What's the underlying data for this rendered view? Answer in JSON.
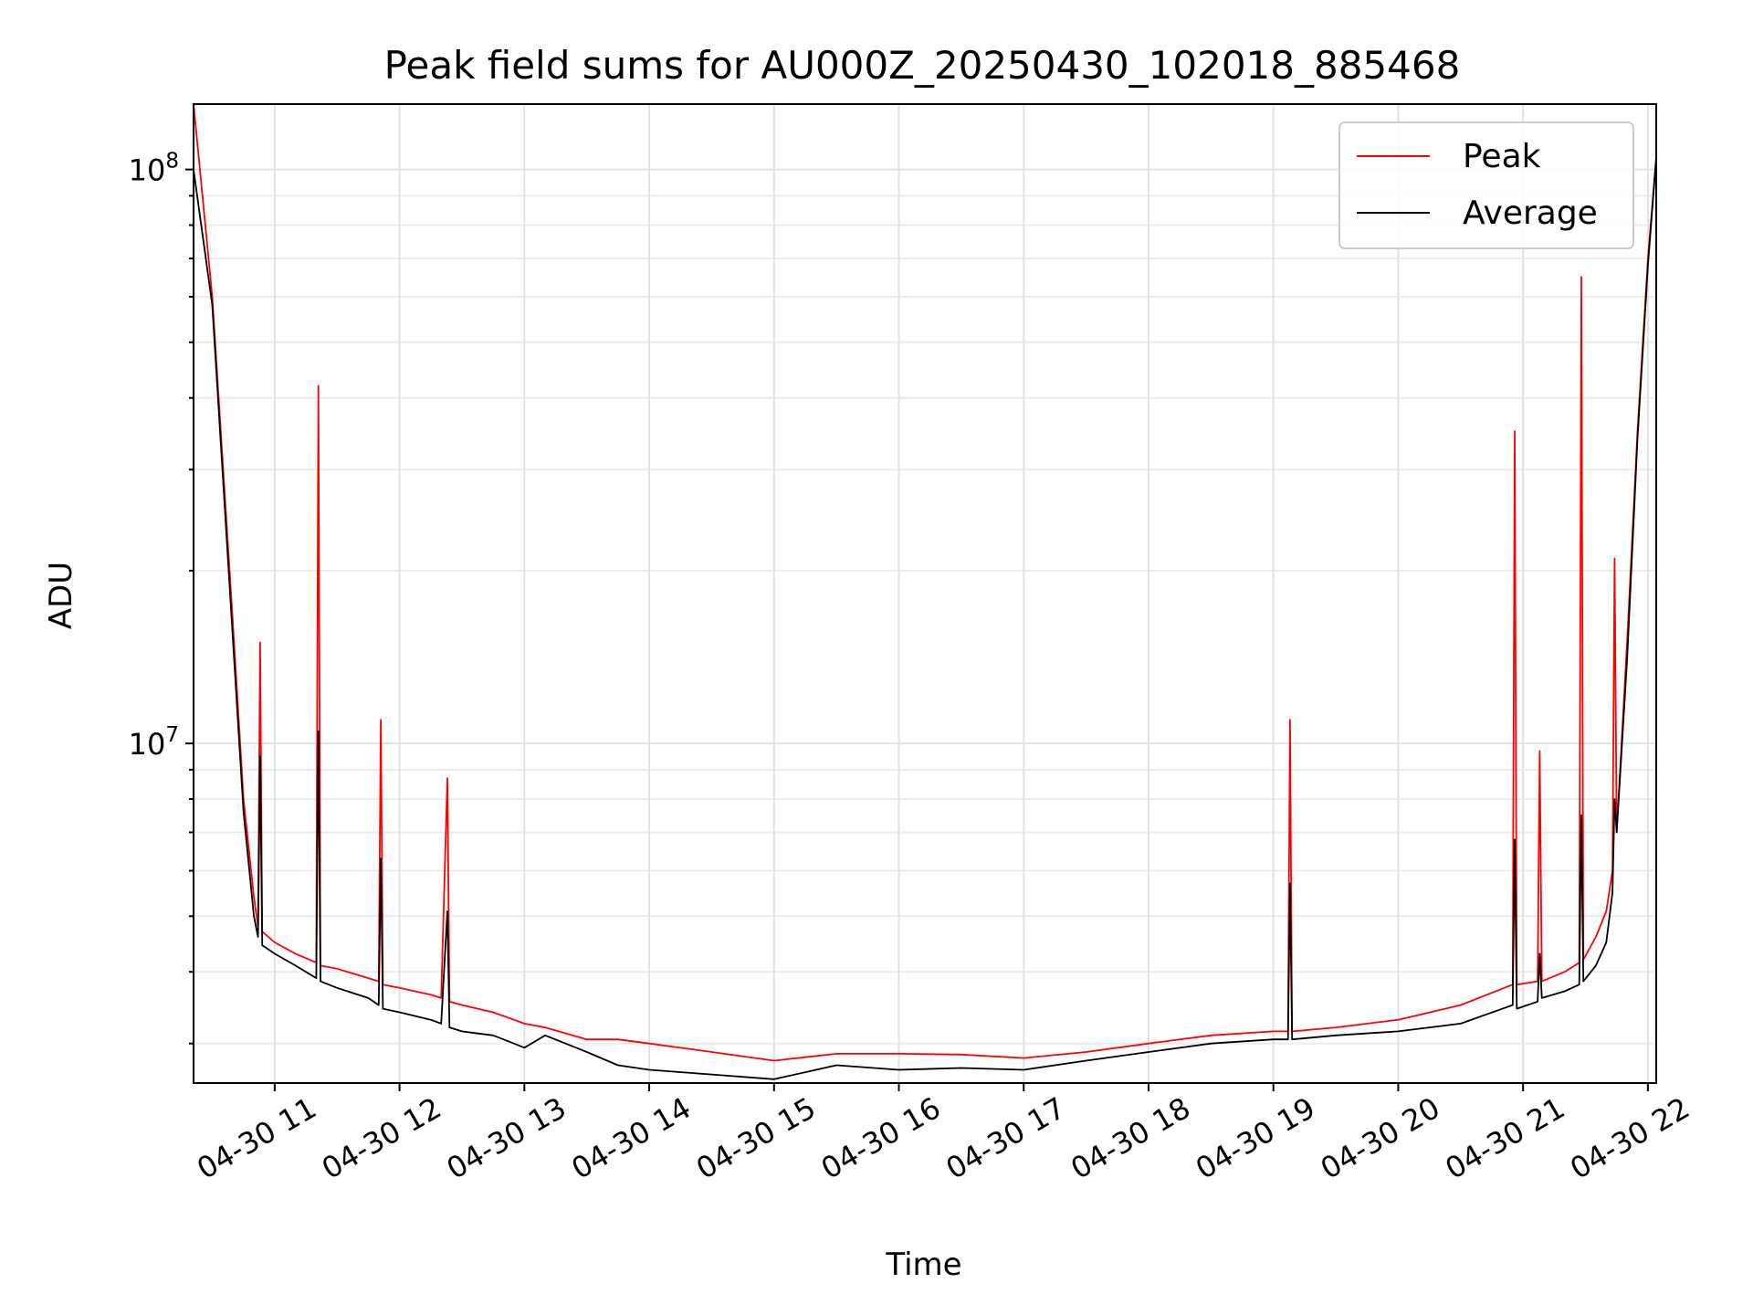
{
  "chart_data": {
    "type": "line",
    "title": "Peak field sums for AU000Z_20250430_102018_885468",
    "xlabel": "Time",
    "ylabel": "ADU",
    "y_scale": "log",
    "ylim": [
      2560000,
      130000000
    ],
    "xlim": [
      "2025-04-30 10:21",
      "2025-04-30 22:04"
    ],
    "grid": true,
    "legend_position": "top-right",
    "x_ticks": [
      "04-30 11",
      "04-30 12",
      "04-30 13",
      "04-30 14",
      "04-30 15",
      "04-30 16",
      "04-30 17",
      "04-30 18",
      "04-30 19",
      "04-30 20",
      "04-30 21",
      "04-30 22"
    ],
    "x_tick_times": [
      "2025-04-30 11:00",
      "2025-04-30 12:00",
      "2025-04-30 13:00",
      "2025-04-30 14:00",
      "2025-04-30 15:00",
      "2025-04-30 16:00",
      "2025-04-30 17:00",
      "2025-04-30 18:00",
      "2025-04-30 19:00",
      "2025-04-30 20:00",
      "2025-04-30 21:00",
      "2025-04-30 22:00"
    ],
    "y_ticks": [
      {
        "value": 100000000,
        "base": "10",
        "exp": "8"
      },
      {
        "value": 10000000,
        "base": "10",
        "exp": "7"
      }
    ],
    "series": [
      {
        "name": "Peak",
        "color": "#ff0000",
        "x": [
          "2025-04-30 10:21",
          "2025-04-30 10:30",
          "2025-04-30 10:40",
          "2025-04-30 10:45",
          "2025-04-30 10:50",
          "2025-04-30 10:52",
          "2025-04-30 10:53",
          "2025-04-30 10:54",
          "2025-04-30 11:00",
          "2025-04-30 11:10",
          "2025-04-30 11:20",
          "2025-04-30 11:21",
          "2025-04-30 11:22",
          "2025-04-30 11:30",
          "2025-04-30 11:45",
          "2025-04-30 11:50",
          "2025-04-30 11:51",
          "2025-04-30 11:52",
          "2025-04-30 12:00",
          "2025-04-30 12:15",
          "2025-04-30 12:20",
          "2025-04-30 12:23",
          "2025-04-30 12:24",
          "2025-04-30 12:30",
          "2025-04-30 12:45",
          "2025-04-30 12:55",
          "2025-04-30 13:00",
          "2025-04-30 13:10",
          "2025-04-30 13:30",
          "2025-04-30 13:45",
          "2025-04-30 14:00",
          "2025-04-30 14:30",
          "2025-04-30 15:00",
          "2025-04-30 15:30",
          "2025-04-30 16:00",
          "2025-04-30 16:30",
          "2025-04-30 17:00",
          "2025-04-30 17:30",
          "2025-04-30 18:00",
          "2025-04-30 18:30",
          "2025-04-30 19:00",
          "2025-04-30 19:07",
          "2025-04-30 19:08",
          "2025-04-30 19:09",
          "2025-04-30 19:30",
          "2025-04-30 20:00",
          "2025-04-30 20:30",
          "2025-04-30 20:55",
          "2025-04-30 20:56",
          "2025-04-30 20:57",
          "2025-04-30 21:07",
          "2025-04-30 21:08",
          "2025-04-30 21:09",
          "2025-04-30 21:20",
          "2025-04-30 21:27",
          "2025-04-30 21:28",
          "2025-04-30 21:29",
          "2025-04-30 21:35",
          "2025-04-30 21:40",
          "2025-04-30 21:43",
          "2025-04-30 21:44",
          "2025-04-30 21:45",
          "2025-04-30 21:50",
          "2025-04-30 21:55",
          "2025-04-30 22:00",
          "2025-04-30 22:04"
        ],
        "values": [
          130000000,
          60000000,
          16000000,
          8000000,
          5400000,
          4800000,
          15000000,
          4700000,
          4500000,
          4300000,
          4150000,
          42000000,
          4100000,
          4050000,
          3900000,
          3850000,
          11000000,
          3800000,
          3750000,
          3650000,
          3600000,
          8700000,
          3550000,
          3500000,
          3400000,
          3300000,
          3250000,
          3200000,
          3050000,
          3050000,
          3000000,
          2900000,
          2800000,
          2880000,
          2880000,
          2870000,
          2830000,
          2900000,
          3000000,
          3100000,
          3150000,
          3150000,
          11000000,
          3150000,
          3200000,
          3300000,
          3500000,
          3800000,
          35000000,
          3800000,
          3850000,
          9700000,
          3850000,
          4000000,
          4150000,
          65000000,
          4200000,
          4600000,
          5100000,
          6000000,
          21000000,
          7000000,
          15000000,
          35000000,
          70000000,
          105000000
        ]
      },
      {
        "name": "Average",
        "color": "#000000",
        "x": [
          "2025-04-30 10:21",
          "2025-04-30 10:30",
          "2025-04-30 10:40",
          "2025-04-30 10:45",
          "2025-04-30 10:50",
          "2025-04-30 10:52",
          "2025-04-30 10:53",
          "2025-04-30 10:54",
          "2025-04-30 11:00",
          "2025-04-30 11:10",
          "2025-04-30 11:20",
          "2025-04-30 11:21",
          "2025-04-30 11:22",
          "2025-04-30 11:30",
          "2025-04-30 11:45",
          "2025-04-30 11:50",
          "2025-04-30 11:51",
          "2025-04-30 11:52",
          "2025-04-30 12:00",
          "2025-04-30 12:15",
          "2025-04-30 12:20",
          "2025-04-30 12:23",
          "2025-04-30 12:24",
          "2025-04-30 12:30",
          "2025-04-30 12:45",
          "2025-04-30 12:55",
          "2025-04-30 13:00",
          "2025-04-30 13:10",
          "2025-04-30 13:30",
          "2025-04-30 13:45",
          "2025-04-30 14:00",
          "2025-04-30 14:30",
          "2025-04-30 15:00",
          "2025-04-30 15:30",
          "2025-04-30 16:00",
          "2025-04-30 16:30",
          "2025-04-30 17:00",
          "2025-04-30 17:30",
          "2025-04-30 18:00",
          "2025-04-30 18:30",
          "2025-04-30 19:00",
          "2025-04-30 19:07",
          "2025-04-30 19:08",
          "2025-04-30 19:09",
          "2025-04-30 19:30",
          "2025-04-30 20:00",
          "2025-04-30 20:30",
          "2025-04-30 20:55",
          "2025-04-30 20:56",
          "2025-04-30 20:57",
          "2025-04-30 21:07",
          "2025-04-30 21:08",
          "2025-04-30 21:09",
          "2025-04-30 21:20",
          "2025-04-30 21:27",
          "2025-04-30 21:28",
          "2025-04-30 21:29",
          "2025-04-30 21:35",
          "2025-04-30 21:40",
          "2025-04-30 21:43",
          "2025-04-30 21:44",
          "2025-04-30 21:45",
          "2025-04-30 21:50",
          "2025-04-30 21:55",
          "2025-04-30 22:00",
          "2025-04-30 22:04"
        ],
        "values": [
          100000000,
          58000000,
          15000000,
          7600000,
          5000000,
          4600000,
          9500000,
          4450000,
          4300000,
          4100000,
          3900000,
          10500000,
          3850000,
          3750000,
          3600000,
          3500000,
          6300000,
          3450000,
          3400000,
          3300000,
          3250000,
          5100000,
          3200000,
          3150000,
          3100000,
          3000000,
          2950000,
          3100000,
          2900000,
          2750000,
          2700000,
          2650000,
          2600000,
          2750000,
          2700000,
          2720000,
          2700000,
          2800000,
          2900000,
          3000000,
          3050000,
          3050000,
          5700000,
          3050000,
          3100000,
          3150000,
          3250000,
          3500000,
          6800000,
          3450000,
          3550000,
          4300000,
          3600000,
          3700000,
          3800000,
          7500000,
          3850000,
          4100000,
          4500000,
          5500000,
          8000000,
          7000000,
          14000000,
          34000000,
          68000000,
          105000000
        ]
      }
    ]
  }
}
